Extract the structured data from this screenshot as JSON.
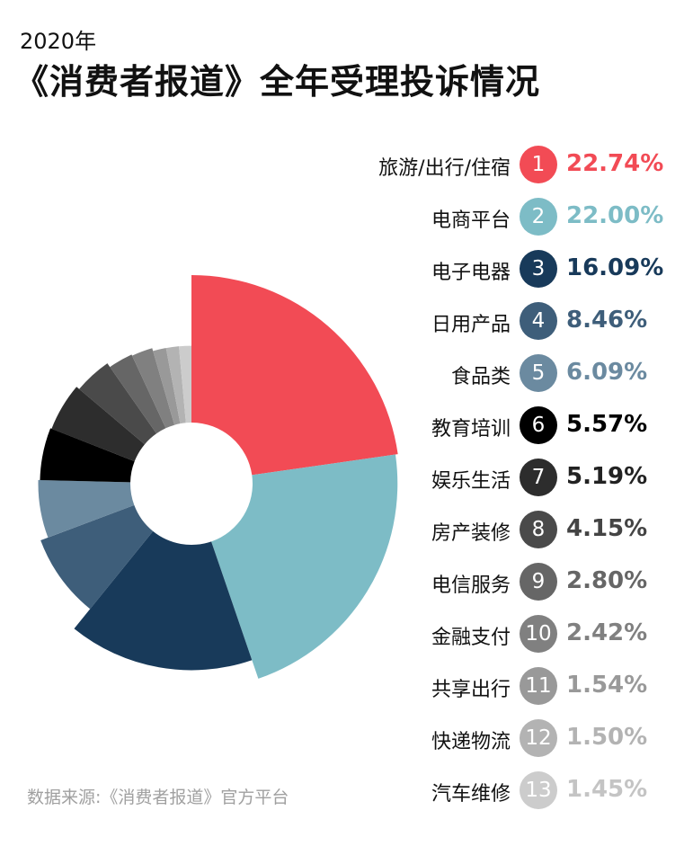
{
  "subtitle": "2020年",
  "title": "《消费者报道》全年受理投诉情况",
  "source": "数据来源:《消费者报道》官方平台",
  "chart_data": {
    "type": "pie",
    "style": "rose-donut",
    "categories": [
      "旅游/出行/住宿",
      "电商平台",
      "电子电器",
      "日用产品",
      "食品类",
      "教育培训",
      "娱乐生活",
      "房产装修",
      "电信服务",
      "金融支付",
      "共享出行",
      "快递物流",
      "汽车维修"
    ],
    "ranks": [
      "1",
      "2",
      "3",
      "4",
      "5",
      "6",
      "7",
      "8",
      "9",
      "10",
      "11",
      "12",
      "13"
    ],
    "values": [
      22.74,
      22.0,
      16.09,
      8.46,
      6.09,
      5.57,
      5.19,
      4.15,
      2.8,
      2.42,
      1.54,
      1.5,
      1.45
    ],
    "value_labels": [
      "22.74%",
      "22.00%",
      "16.09%",
      "8.46%",
      "6.09%",
      "5.57%",
      "5.19%",
      "4.15%",
      "2.80%",
      "2.42%",
      "1.54%",
      "1.50%",
      "1.45%"
    ],
    "colors": [
      "#f24b55",
      "#7dbcc6",
      "#183a5a",
      "#3e5e7a",
      "#6b8aa0",
      "#000000",
      "#2d2d2d",
      "#4a4a4a",
      "#666666",
      "#808080",
      "#999999",
      "#b3b3b3",
      "#cccccc"
    ],
    "legend_position": "right"
  }
}
